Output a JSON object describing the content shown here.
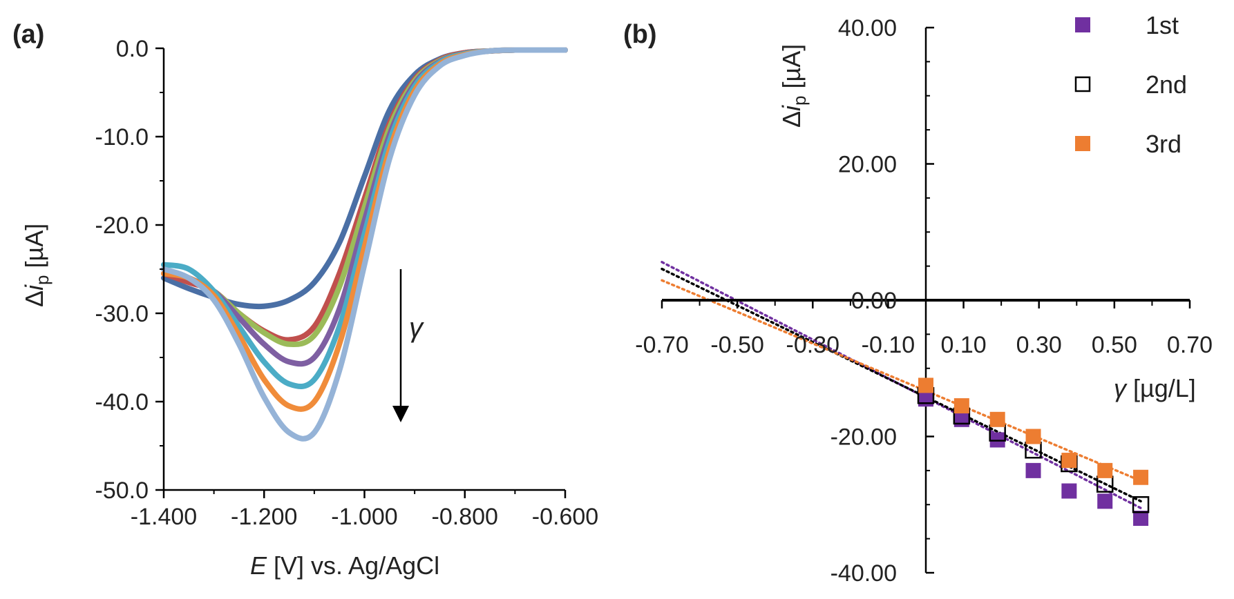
{
  "chart_data": [
    {
      "panel": "(a)",
      "type": "line",
      "xlabel_var": "E",
      "xlabel_rest": " [V] vs. Ag/AgCl",
      "ylabel_delta": "Δ",
      "ylabel_i": "i",
      "ylabel_sub": "p",
      "ylabel_unit": " [µA]",
      "arrow_label": "γ",
      "xlim": [
        -1.4,
        -0.6
      ],
      "ylim": [
        -50,
        0
      ],
      "xticks": [
        "-1.400",
        "-1.200",
        "-1.000",
        "-0.800",
        "-0.600"
      ],
      "yticks": [
        "0.0",
        "-10.0",
        "-20.0",
        "-30.0",
        "-40.0",
        "-50.0"
      ],
      "x": [
        -1.4,
        -1.35,
        -1.3,
        -1.25,
        -1.2,
        -1.15,
        -1.1,
        -1.05,
        -1.0,
        -0.95,
        -0.9,
        -0.85,
        -0.8,
        -0.75,
        -0.7,
        -0.65,
        -0.6
      ],
      "series": [
        {
          "color": "#4a6fa5",
          "values": [
            -26.0,
            -27.2,
            -28.2,
            -29.0,
            -29.2,
            -28.5,
            -26.5,
            -22.0,
            -14.5,
            -7.0,
            -3.0,
            -1.2,
            -0.5,
            -0.3,
            -0.2,
            -0.2,
            -0.2
          ]
        },
        {
          "color": "#c0504d",
          "values": [
            -25.5,
            -26.5,
            -27.5,
            -30.0,
            -32.0,
            -33.0,
            -31.5,
            -25.5,
            -17.0,
            -8.5,
            -3.5,
            -1.3,
            -0.5,
            -0.3,
            -0.2,
            -0.2,
            -0.2
          ]
        },
        {
          "color": "#9bbb59",
          "values": [
            -25.0,
            -26.0,
            -27.5,
            -30.0,
            -32.2,
            -33.5,
            -32.5,
            -27.0,
            -18.0,
            -9.0,
            -3.7,
            -1.4,
            -0.6,
            -0.3,
            -0.2,
            -0.2,
            -0.2
          ]
        },
        {
          "color": "#7e5fa2",
          "values": [
            -25.0,
            -26.0,
            -27.5,
            -30.5,
            -33.5,
            -35.5,
            -35.0,
            -29.5,
            -19.5,
            -9.8,
            -4.0,
            -1.5,
            -0.6,
            -0.3,
            -0.2,
            -0.2,
            -0.2
          ]
        },
        {
          "color": "#4bacc6",
          "values": [
            -24.5,
            -25.0,
            -27.5,
            -31.5,
            -35.5,
            -38.0,
            -37.5,
            -31.5,
            -21.0,
            -10.5,
            -4.3,
            -1.6,
            -0.6,
            -0.3,
            -0.2,
            -0.2,
            -0.2
          ]
        },
        {
          "color": "#f08c3a",
          "values": [
            -25.5,
            -26.0,
            -28.0,
            -32.5,
            -37.5,
            -40.5,
            -40.0,
            -33.5,
            -22.5,
            -11.5,
            -4.8,
            -1.8,
            -0.7,
            -0.3,
            -0.2,
            -0.2,
            -0.2
          ]
        },
        {
          "color": "#95b3d7",
          "values": [
            -25.0,
            -26.0,
            -28.5,
            -33.5,
            -39.5,
            -43.5,
            -43.5,
            -36.5,
            -24.5,
            -12.5,
            -5.3,
            -2.0,
            -0.8,
            -0.3,
            -0.2,
            -0.2,
            -0.2
          ]
        }
      ]
    },
    {
      "panel": "(b)",
      "type": "scatter",
      "xlabel_var": "γ",
      "xlabel_rest": " [µg/L]",
      "ylabel_delta": "Δ",
      "ylabel_i": "i",
      "ylabel_sub": "p",
      "ylabel_unit": " [µA]",
      "xlim": [
        -0.7,
        0.7
      ],
      "ylim": [
        -40,
        40
      ],
      "xticks": [
        "-0.70",
        "-0.50",
        "-0.30",
        "-0.10",
        "0.10",
        "0.30",
        "0.50",
        "0.70"
      ],
      "yticks": [
        "40.00",
        "20.00",
        "0.00",
        "-20.00",
        "-40.00"
      ],
      "x": [
        0.0,
        0.095,
        0.19,
        0.285,
        0.38,
        0.475,
        0.57
      ],
      "legend_position": "top-right",
      "series": [
        {
          "name": "1st",
          "marker": "filled-square",
          "color": "#7030a0",
          "values": [
            -14.5,
            -17.5,
            -20.5,
            -25.0,
            -28.0,
            -29.5,
            -32.0
          ],
          "trend": [
            -14.3,
            -30.5
          ]
        },
        {
          "name": "2nd",
          "marker": "open-square",
          "color": "#000000",
          "values": [
            -14.0,
            -17.0,
            -19.5,
            -22.0,
            -24.0,
            -27.0,
            -30.0
          ],
          "trend": [
            -14.2,
            -29.5
          ]
        },
        {
          "name": "3rd",
          "marker": "filled-square",
          "color": "#ed7d31",
          "values": [
            -12.5,
            -15.5,
            -17.5,
            -20.0,
            -23.5,
            -25.0,
            -26.0
          ],
          "trend": [
            -13.3,
            -26.5
          ]
        }
      ]
    }
  ]
}
